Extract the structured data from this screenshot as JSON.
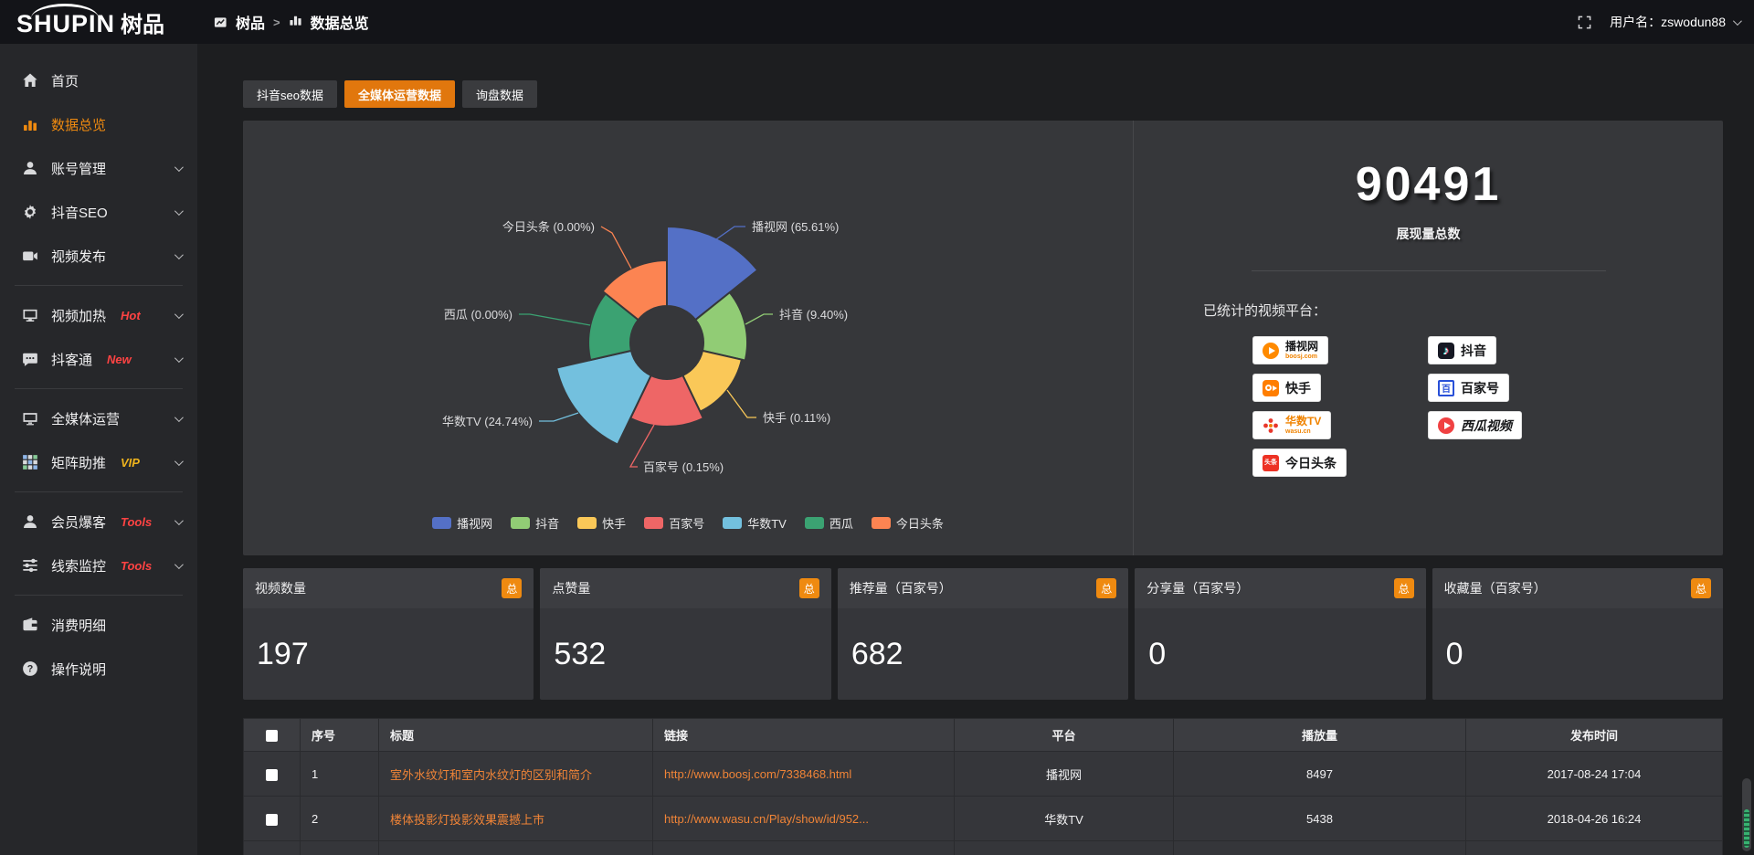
{
  "header": {
    "logo_en": "SHUPIN",
    "logo_cn": "树品",
    "breadcrumb_root": "树品",
    "breadcrumb_sep": ">",
    "breadcrumb_current": "数据总览",
    "username_label": "用户名：zswodun88"
  },
  "sidebar": {
    "items": [
      {
        "id": "home",
        "icon": "home-icon",
        "label": "首页"
      },
      {
        "id": "data-overview",
        "icon": "bar-chart-icon",
        "label": "数据总览",
        "active": true
      },
      {
        "id": "account-manage",
        "icon": "user-icon",
        "label": "账号管理",
        "chevron": true
      },
      {
        "id": "douyin-seo",
        "icon": "gear-icon",
        "label": "抖音SEO",
        "chevron": true
      },
      {
        "id": "video-publish",
        "icon": "camera-icon",
        "label": "视频发布",
        "chevron": true
      },
      {
        "divider": true
      },
      {
        "id": "video-heat",
        "icon": "monitor-play-icon",
        "label": "视频加热",
        "tag": "Hot",
        "tag_color": "#ff4343",
        "chevron": true
      },
      {
        "id": "douketong",
        "icon": "chat-icon",
        "label": "抖客通",
        "tag": "New",
        "tag_color": "#ff4343",
        "chevron": true
      },
      {
        "divider": true
      },
      {
        "id": "omni-media",
        "icon": "monitor-icon",
        "label": "全媒体运营",
        "chevron": true
      },
      {
        "id": "matrix-boost",
        "icon": "grid-icon",
        "label": "矩阵助推",
        "tag": "VIP",
        "tag_color": "#efb41d",
        "chevron": true
      },
      {
        "divider": true
      },
      {
        "id": "member-baoke",
        "icon": "person-icon",
        "label": "会员爆客",
        "tag": "Tools",
        "tag_color": "#ff4343",
        "chevron": true
      },
      {
        "id": "clue-monitor",
        "icon": "sliders-icon",
        "label": "线索监控",
        "tag": "Tools",
        "tag_color": "#ff4343",
        "chevron": true
      },
      {
        "divider": true
      },
      {
        "id": "consumption-detail",
        "icon": "wallet-icon",
        "label": "消费明细"
      },
      {
        "id": "instructions",
        "icon": "question-icon",
        "label": "操作说明"
      }
    ]
  },
  "tabs": [
    {
      "label": "抖音seo数据"
    },
    {
      "label": "全媒体运营数据",
      "active": true
    },
    {
      "label": "询盘数据"
    }
  ],
  "chart_data": {
    "type": "pie",
    "variant": "nightingale-rose-donut",
    "labels": [
      "播视网",
      "抖音",
      "快手",
      "百家号",
      "华数TV",
      "西瓜",
      "今日头条"
    ],
    "values_percent": [
      65.61,
      9.4,
      0.11,
      0.15,
      24.74,
      0.0,
      0.0
    ],
    "percent_labels": [
      "65.61%",
      "9.40%",
      "0.11%",
      "0.15%",
      "24.74%",
      "0.00%",
      "0.00%"
    ],
    "colors": [
      "#5470c6",
      "#91cc75",
      "#fac858",
      "#ee6666",
      "#73c0de",
      "#3ba272",
      "#fc8452"
    ],
    "legend_position": "bottom",
    "legend": [
      "播视网",
      "抖音",
      "快手",
      "百家号",
      "华数TV",
      "西瓜",
      "今日头条"
    ]
  },
  "summary": {
    "total_value": "90491",
    "total_label": "展现量总数",
    "platforms_title": "已统计的视频平台：",
    "platforms": [
      {
        "name": "播视网",
        "sub": "boosj.com",
        "logo": "boosj"
      },
      {
        "name": "抖音",
        "logo": "douyin",
        "logo_glyph": "♪"
      },
      {
        "name": "快手",
        "logo": "kuaishou"
      },
      {
        "name": "百家号",
        "logo": "baijiahao",
        "logo_glyph": "百"
      },
      {
        "name": "华数TV",
        "sub": "wasu.cn",
        "logo": "wasu"
      },
      {
        "name": "西瓜视频",
        "logo": "xigua"
      },
      {
        "name": "今日头条",
        "logo": "toutiao",
        "logo_glyph": "头条"
      }
    ]
  },
  "stat_cards": [
    {
      "label": "视频数量",
      "badge": "总",
      "value": "197"
    },
    {
      "label": "点赞量",
      "badge": "总",
      "value": "532"
    },
    {
      "label": "推荐量（百家号）",
      "badge": "总",
      "value": "682"
    },
    {
      "label": "分享量（百家号）",
      "badge": "总",
      "value": "0"
    },
    {
      "label": "收藏量（百家号）",
      "badge": "总",
      "value": "0"
    }
  ],
  "table": {
    "columns": [
      "序号",
      "标题",
      "链接",
      "平台",
      "播放量",
      "发布时间"
    ],
    "rows": [
      {
        "index": "1",
        "title": "室外水纹灯和室内水纹灯的区别和简介",
        "link": "http://www.boosj.com/7338468.html",
        "platform": "播视网",
        "plays": "8497",
        "time": "2017-08-24 17:04"
      },
      {
        "index": "2",
        "title": "楼体投影灯投影效果震撼上市",
        "link": "http://www.wasu.cn/Play/show/id/952...",
        "platform": "华数TV",
        "plays": "5438",
        "time": "2018-04-26 16:24"
      },
      {
        "index": "",
        "title": "",
        "link": "",
        "platform": "",
        "plays": "",
        "time": ""
      }
    ]
  },
  "colors": {
    "accent_orange": "#e1770d",
    "link_orange": "#f08437",
    "panel_bg": "#36373a",
    "page_bg": "#1d1e20",
    "sidebar_bg": "#26272a",
    "header_bg": "#131418",
    "badge_orange": "#ef8a10"
  }
}
